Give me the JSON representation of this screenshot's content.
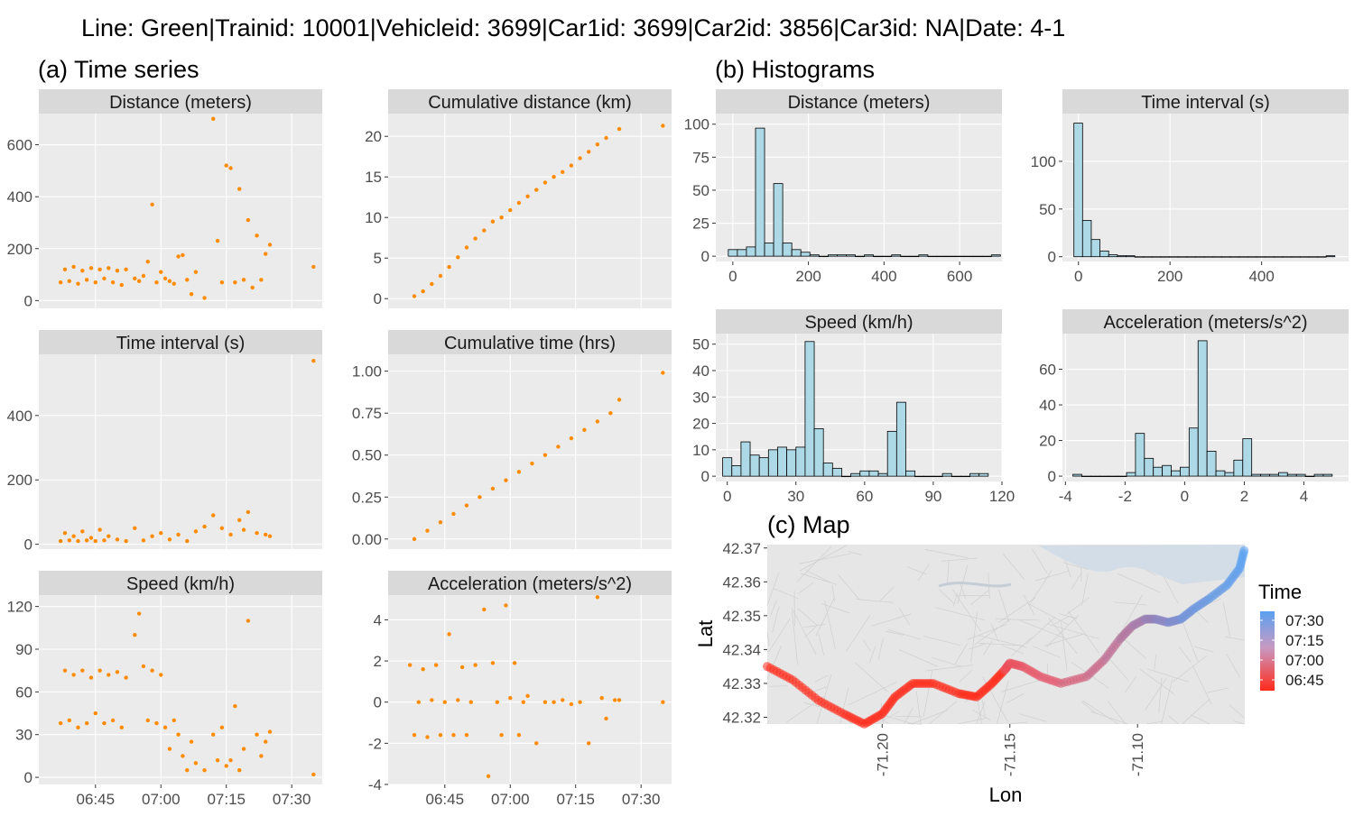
{
  "title": "Line: Green|Trainid: 10001|Vehicleid:   3699|Car1id: 3699|Car2id: 3856|Car3id: NA|Date: 4-1",
  "sections": {
    "a": "(a) Time series",
    "b": "(b) Histograms",
    "c": "(c) Map"
  },
  "colors": {
    "points": "#ff8c00",
    "hist_fill": "#add8e6",
    "strip": "#d9d9d9",
    "panel": "#ebebeb",
    "map_bg": "#e6e6e6",
    "time_high": "#5aa0f0",
    "time_low": "#ff2a1a"
  },
  "chart_data": [
    {
      "type": "scatter",
      "title": "Distance (meters)",
      "ylim": [
        -30,
        720
      ],
      "yticks": [
        0,
        200,
        400,
        600
      ],
      "xticks": [],
      "x": [
        "06:37",
        "06:38",
        "06:39",
        "06:40",
        "06:41",
        "06:42",
        "06:43",
        "06:44",
        "06:45",
        "06:46",
        "06:47",
        "06:48",
        "06:49",
        "06:50",
        "06:51",
        "06:52",
        "06:54",
        "06:55",
        "06:56",
        "06:57",
        "06:58",
        "06:59",
        "07:00",
        "07:01",
        "07:02",
        "07:03",
        "07:04",
        "07:05",
        "07:06",
        "07:07",
        "07:08",
        "07:10",
        "07:12",
        "07:13",
        "07:14",
        "07:15",
        "07:16",
        "07:17",
        "07:18",
        "07:19",
        "07:20",
        "07:21",
        "07:22",
        "07:23",
        "07:24",
        "07:25",
        "07:35"
      ],
      "y": [
        70,
        120,
        75,
        130,
        65,
        115,
        80,
        125,
        70,
        120,
        85,
        125,
        70,
        115,
        60,
        120,
        85,
        75,
        95,
        150,
        370,
        70,
        110,
        85,
        75,
        65,
        170,
        175,
        80,
        25,
        110,
        10,
        700,
        230,
        70,
        520,
        510,
        70,
        430,
        80,
        310,
        50,
        250,
        80,
        180,
        215,
        130
      ]
    },
    {
      "type": "scatter",
      "title": "Cumulative distance (km)",
      "ylim": [
        -1.2,
        22.8
      ],
      "yticks": [
        0,
        5,
        10,
        15,
        20
      ],
      "xticks": [],
      "x": [
        "06:38",
        "06:40",
        "06:42",
        "06:44",
        "06:46",
        "06:48",
        "06:50",
        "06:52",
        "06:54",
        "06:56",
        "06:58",
        "07:00",
        "07:02",
        "07:04",
        "07:06",
        "07:08",
        "07:10",
        "07:12",
        "07:14",
        "07:16",
        "07:18",
        "07:20",
        "07:22",
        "07:25",
        "07:35"
      ],
      "y": [
        0.3,
        0.9,
        1.8,
        2.8,
        3.9,
        5.1,
        6.3,
        7.4,
        8.4,
        9.5,
        10.0,
        10.9,
        11.8,
        12.6,
        13.4,
        14.3,
        15.0,
        15.6,
        16.4,
        17.3,
        18.1,
        19.0,
        19.8,
        20.9,
        21.3
      ]
    },
    {
      "type": "scatter",
      "title": "Time interval (s)",
      "ylim": [
        -15,
        590
      ],
      "yticks": [
        0,
        200,
        400
      ],
      "xticks": [],
      "x": [
        "06:37",
        "06:38",
        "06:39",
        "06:40",
        "06:41",
        "06:42",
        "06:43",
        "06:44",
        "06:45",
        "06:46",
        "06:47",
        "06:48",
        "06:50",
        "06:52",
        "06:54",
        "06:56",
        "06:58",
        "07:00",
        "07:02",
        "07:04",
        "07:06",
        "07:08",
        "07:10",
        "07:12",
        "07:14",
        "07:16",
        "07:18",
        "07:19",
        "07:20",
        "07:22",
        "07:24",
        "07:25",
        "07:35"
      ],
      "y": [
        10,
        35,
        12,
        25,
        10,
        40,
        12,
        20,
        10,
        45,
        12,
        25,
        15,
        10,
        50,
        12,
        25,
        35,
        15,
        30,
        10,
        40,
        55,
        90,
        50,
        30,
        75,
        45,
        100,
        35,
        30,
        25,
        570
      ]
    },
    {
      "type": "scatter",
      "title": "Cumulative time (hrs)",
      "ylim": [
        -0.06,
        1.1
      ],
      "yticks": [
        0.0,
        0.25,
        0.5,
        0.75,
        1.0
      ],
      "xticks": [],
      "x": [
        "06:38",
        "06:41",
        "06:44",
        "06:47",
        "06:50",
        "06:53",
        "06:56",
        "06:59",
        "07:02",
        "07:05",
        "07:08",
        "07:11",
        "07:14",
        "07:17",
        "07:20",
        "07:23",
        "07:25",
        "07:35"
      ],
      "y": [
        0.0,
        0.05,
        0.1,
        0.15,
        0.2,
        0.25,
        0.3,
        0.35,
        0.4,
        0.45,
        0.5,
        0.55,
        0.6,
        0.65,
        0.7,
        0.75,
        0.83,
        0.99
      ]
    },
    {
      "type": "scatter",
      "title": "Speed (km/h)",
      "ylim": [
        -5,
        128
      ],
      "yticks": [
        0,
        30,
        60,
        90,
        120
      ],
      "xticks": [
        "06:45",
        "07:00",
        "07:15",
        "07:30"
      ],
      "x": [
        "06:37",
        "06:38",
        "06:39",
        "06:40",
        "06:41",
        "06:42",
        "06:43",
        "06:44",
        "06:45",
        "06:46",
        "06:47",
        "06:48",
        "06:49",
        "06:50",
        "06:51",
        "06:52",
        "06:54",
        "06:55",
        "06:56",
        "06:57",
        "06:58",
        "06:59",
        "07:00",
        "07:01",
        "07:02",
        "07:03",
        "07:04",
        "07:05",
        "07:06",
        "07:07",
        "07:08",
        "07:10",
        "07:12",
        "07:13",
        "07:14",
        "07:15",
        "07:16",
        "07:17",
        "07:18",
        "07:19",
        "07:20",
        "07:22",
        "07:23",
        "07:24",
        "07:25",
        "07:35"
      ],
      "y": [
        38,
        75,
        40,
        72,
        35,
        75,
        38,
        70,
        45,
        75,
        38,
        72,
        40,
        74,
        35,
        70,
        100,
        115,
        78,
        40,
        75,
        38,
        72,
        35,
        20,
        40,
        30,
        15,
        5,
        25,
        10,
        5,
        30,
        12,
        35,
        8,
        12,
        50,
        5,
        20,
        110,
        30,
        15,
        25,
        32,
        2
      ]
    },
    {
      "type": "scatter",
      "title": "Acceleration (meters/s^2)",
      "ylim": [
        -4,
        5.2
      ],
      "yticks": [
        -4,
        -2,
        0,
        2,
        4
      ],
      "xticks": [
        "06:45",
        "07:00",
        "07:15",
        "07:30"
      ],
      "x": [
        "06:37",
        "06:38",
        "06:39",
        "06:40",
        "06:41",
        "06:42",
        "06:43",
        "06:44",
        "06:45",
        "06:46",
        "06:47",
        "06:48",
        "06:49",
        "06:50",
        "06:51",
        "06:52",
        "06:54",
        "06:55",
        "06:56",
        "06:57",
        "06:58",
        "06:59",
        "07:00",
        "07:01",
        "07:02",
        "07:03",
        "07:04",
        "07:06",
        "07:08",
        "07:10",
        "07:12",
        "07:14",
        "07:16",
        "07:18",
        "07:20",
        "07:21",
        "07:22",
        "07:24",
        "07:25",
        "07:35"
      ],
      "y": [
        1.8,
        -1.6,
        0,
        1.6,
        -1.7,
        0.1,
        1.8,
        -1.6,
        0,
        3.3,
        -1.6,
        0.1,
        1.7,
        -1.6,
        0,
        1.8,
        4.5,
        -3.6,
        1.9,
        0,
        -1.6,
        4.7,
        0.2,
        1.9,
        -1.6,
        0,
        0.3,
        -2,
        0,
        0,
        0.1,
        -0.1,
        0,
        -2,
        5.1,
        0.2,
        -0.8,
        0.1,
        0.1,
        0
      ]
    },
    {
      "type": "bar",
      "title": "Distance (meters)",
      "bins_from": -12,
      "bin_width": 24,
      "values": [
        5,
        5,
        7,
        97,
        10,
        55,
        10,
        5,
        3,
        1,
        0,
        1,
        1,
        1,
        0,
        1,
        0,
        0,
        1,
        0,
        0,
        1,
        0,
        0,
        0,
        0,
        0,
        0,
        0,
        1
      ],
      "xlim": [
        -45,
        712
      ],
      "ylim": [
        -4,
        108
      ],
      "xticks": [
        0,
        200,
        400,
        600
      ],
      "yticks": [
        0,
        25,
        50,
        75,
        100
      ]
    },
    {
      "type": "bar",
      "title": "Time interval (s)",
      "bins_from": -10,
      "bin_width": 19,
      "values": [
        140,
        38,
        18,
        6,
        2,
        1,
        1,
        0,
        0,
        0,
        0,
        0,
        0,
        0,
        0,
        0,
        0,
        0,
        0,
        0,
        0,
        0,
        0,
        0,
        0,
        0,
        0,
        0,
        0,
        1
      ],
      "xlim": [
        -35,
        590
      ],
      "ylim": [
        -5,
        150
      ],
      "xticks": [
        0,
        200,
        400
      ],
      "yticks": [
        0,
        50,
        100
      ]
    },
    {
      "type": "bar",
      "title": "Speed (km/h)",
      "bins_from": -2,
      "bin_width": 4,
      "values": [
        7,
        4,
        13,
        8,
        7,
        10,
        11,
        10,
        11,
        51,
        18,
        5,
        3,
        0,
        1,
        2,
        2,
        1,
        17,
        28,
        2,
        0,
        0,
        0,
        1,
        0,
        0,
        1,
        1
      ],
      "xlim": [
        -5,
        120
      ],
      "ylim": [
        -2,
        54
      ],
      "xticks": [
        0,
        30,
        60,
        90,
        120
      ],
      "yticks": [
        0,
        10,
        20,
        30,
        40,
        50
      ]
    },
    {
      "type": "bar",
      "title": "Acceleration (meters/s^2)",
      "bins_from": -3.75,
      "bin_width": 0.3,
      "values": [
        1,
        0,
        0,
        0,
        0,
        0,
        2,
        24,
        10,
        5,
        6,
        3,
        5,
        27,
        76,
        14,
        3,
        2,
        9,
        21,
        1,
        1,
        1,
        2,
        1,
        1,
        0,
        1,
        1
      ],
      "xlim": [
        -4.1,
        5.5
      ],
      "ylim": [
        -3,
        80
      ],
      "xticks": [
        -4,
        -2,
        0,
        2,
        4
      ],
      "yticks": [
        0,
        20,
        40,
        60
      ]
    }
  ],
  "map": {
    "xlabel": "Lon",
    "ylabel": "Lat",
    "xlim": [
      -71.245,
      -71.058
    ],
    "ylim": [
      42.318,
      42.371
    ],
    "xticks": [
      -71.2,
      -71.15,
      -71.1
    ],
    "yticks": [
      42.32,
      42.33,
      42.34,
      42.35,
      42.36,
      42.37
    ],
    "legend_title": "Time",
    "legend_labels": [
      "07:30",
      "07:15",
      "07:00",
      "06:45"
    ],
    "track_lon": [
      -71.245,
      -71.235,
      -71.225,
      -71.215,
      -71.207,
      -71.2,
      -71.195,
      -71.188,
      -71.18,
      -71.17,
      -71.163,
      -71.157,
      -71.152,
      -71.15,
      -71.145,
      -71.138,
      -71.13,
      -71.12,
      -71.113,
      -71.107,
      -71.102,
      -71.097,
      -71.093,
      -71.088,
      -71.083,
      -71.078,
      -71.072,
      -71.065,
      -71.06,
      -71.058
    ],
    "track_lat": [
      42.335,
      42.331,
      42.325,
      42.321,
      42.318,
      42.321,
      42.326,
      42.33,
      42.33,
      42.327,
      42.326,
      42.33,
      42.334,
      42.336,
      42.335,
      42.332,
      42.33,
      42.332,
      42.337,
      42.343,
      42.347,
      42.349,
      42.349,
      42.348,
      42.349,
      42.352,
      42.355,
      42.359,
      42.364,
      42.37
    ],
    "track_time": [
      "06:38",
      "06:40",
      "06:42",
      "06:44",
      "06:46",
      "06:48",
      "06:50",
      "06:52",
      "06:54",
      "06:56",
      "06:58",
      "07:00",
      "07:02",
      "07:04",
      "07:06",
      "07:08",
      "07:10",
      "07:12",
      "07:14",
      "07:16",
      "07:18",
      "07:20",
      "07:22",
      "07:24",
      "07:26",
      "07:27",
      "07:28",
      "07:29",
      "07:30",
      "07:31"
    ]
  }
}
